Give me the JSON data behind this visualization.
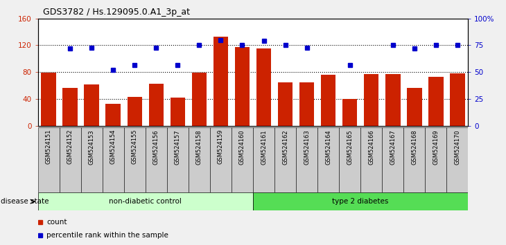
{
  "title": "GDS3782 / Hs.129095.0.A1_3p_at",
  "samples": [
    "GSM524151",
    "GSM524152",
    "GSM524153",
    "GSM524154",
    "GSM524155",
    "GSM524156",
    "GSM524157",
    "GSM524158",
    "GSM524159",
    "GSM524160",
    "GSM524161",
    "GSM524162",
    "GSM524163",
    "GSM524164",
    "GSM524165",
    "GSM524166",
    "GSM524167",
    "GSM524168",
    "GSM524169",
    "GSM524170"
  ],
  "counts": [
    79,
    57,
    62,
    33,
    43,
    63,
    42,
    79,
    133,
    117,
    115,
    65,
    65,
    76,
    40,
    77,
    77,
    57,
    73,
    78
  ],
  "percentiles": [
    null,
    72,
    73,
    52,
    57,
    73,
    57,
    75,
    80,
    75,
    79,
    75,
    73,
    null,
    57,
    null,
    75,
    72,
    75,
    75
  ],
  "bar_color": "#CC2200",
  "dot_color": "#0000CC",
  "ylim_left": [
    0,
    160
  ],
  "ylim_right": [
    0,
    100
  ],
  "yticks_left": [
    0,
    40,
    80,
    120,
    160
  ],
  "ytick_labels_left": [
    "0",
    "40",
    "80",
    "120",
    "160"
  ],
  "ytick_labels_right": [
    "0",
    "25",
    "50",
    "75",
    "100%"
  ],
  "yticks_right": [
    0,
    25,
    50,
    75,
    100
  ],
  "group1_label": "non-diabetic control",
  "group2_label": "type 2 diabetes",
  "group1_n": 10,
  "group2_n": 10,
  "group1_color": "#ccffcc",
  "group2_color": "#55dd55",
  "disease_state_label": "disease state",
  "legend_count_label": "count",
  "legend_pct_label": "percentile rank within the sample",
  "fig_bg_color": "#f0f0f0",
  "plot_bg_color": "#ffffff",
  "xtick_bg_color": "#cccccc"
}
